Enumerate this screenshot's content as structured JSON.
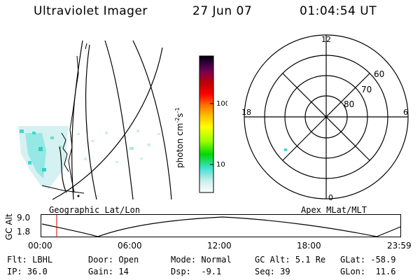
{
  "header": {
    "title": "Ultraviolet Imager",
    "date": "27 Jun 07",
    "time": "01:04:54 UT"
  },
  "colorbar": {
    "label": "photon cm",
    "label_sup1": "-2",
    "label_mid": "s",
    "label_sup2": "-1",
    "ticks": [
      "100",
      "10"
    ],
    "colors": [
      "#ffffff",
      "#e0f0f0",
      "#b0e8e8",
      "#40e0d0",
      "#00e000",
      "#a0ff00",
      "#ffff00",
      "#ffc000",
      "#ff8000",
      "#ff0000",
      "#d00000",
      "#a00040",
      "#600060",
      "#200030",
      "#000000"
    ]
  },
  "geo_panel": {
    "label": "Geographic Lat/Lon"
  },
  "polar_panel": {
    "label": "Apex MLat/MLT",
    "mlt_labels": {
      "top": "12",
      "left": "18",
      "right": "6",
      "bottom": "0"
    },
    "lat_labels": [
      "60",
      "70",
      "80"
    ]
  },
  "altitude_plot": {
    "ylabel": "GC Alt",
    "ytick_top": "9.0",
    "ytick_bottom": "1.8",
    "xticks": [
      "00:00",
      "06:00",
      "12:00",
      "18:00",
      "23:59"
    ]
  },
  "info": {
    "flt_label": "Flt:",
    "flt_value": "LBHL",
    "ip_label": "IP:",
    "ip_value": "36.0",
    "door_label": "Door:",
    "door_value": "Open",
    "gain_label": "Gain:",
    "gain_value": "14",
    "mode_label": "Mode:",
    "mode_value": "Normal",
    "dsp_label": "Dsp:",
    "dsp_value": "-9.1",
    "gcalt_label": "GC Alt:",
    "gcalt_value": "5.1 Re",
    "seq_label": "Seq:",
    "seq_value": "39",
    "glat_label": "GLat:",
    "glat_value": "-58.9",
    "glon_label": "GLon:",
    "glon_value": "11.6"
  }
}
